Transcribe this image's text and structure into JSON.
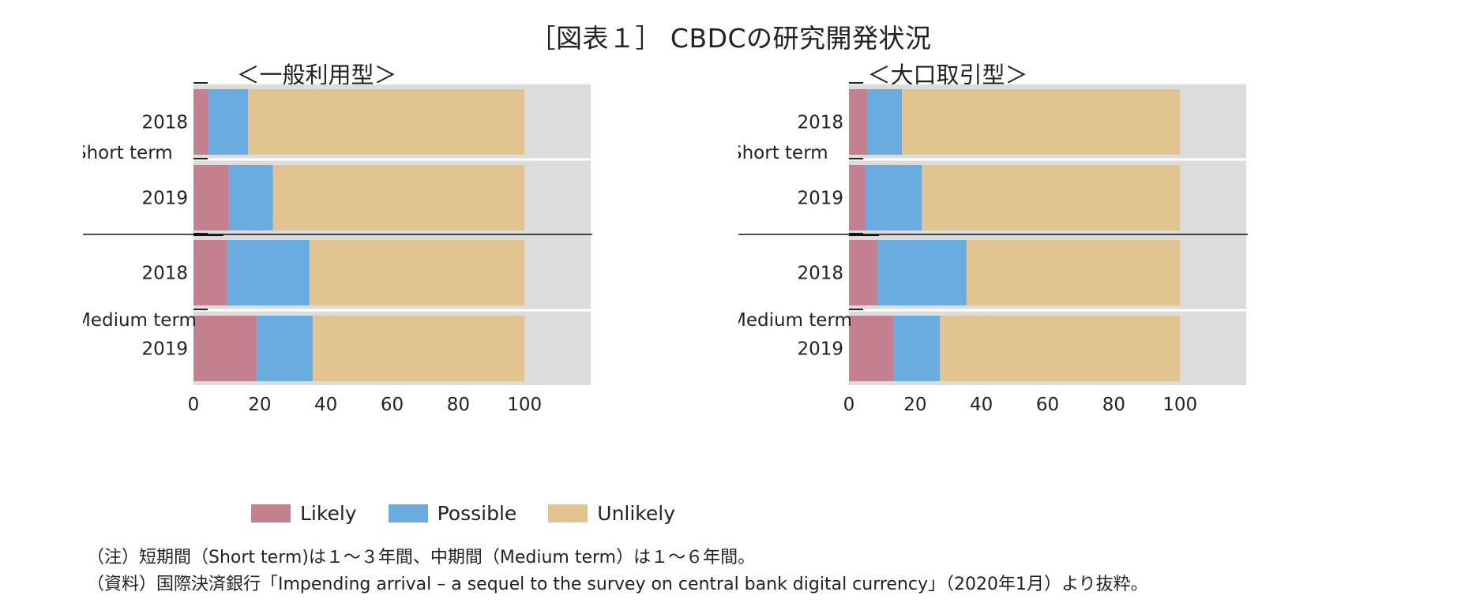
{
  "title": "［図表１］ CBDCの研究開発状況",
  "colors": {
    "likely": "#c4808f",
    "possible": "#6aabe0",
    "unlikely": "#e2c491",
    "plot_bg": "#dcdcdc"
  },
  "legend": [
    "Likely",
    "Possible",
    "Unlikely"
  ],
  "chart_data": [
    {
      "type": "bar",
      "orientation": "horizontal",
      "stacked": true,
      "title": "＜一般利用型＞",
      "groups": [
        "Short term",
        "Medium term"
      ],
      "categories": [
        "2018",
        "2019",
        "2018",
        "2019"
      ],
      "series": [
        {
          "name": "Likely",
          "values": [
            4.5,
            10.5,
            10,
            19
          ]
        },
        {
          "name": "Possible",
          "values": [
            12,
            13.5,
            25,
            17
          ]
        },
        {
          "name": "Unlikely",
          "values": [
            83.5,
            76,
            65,
            64
          ]
        }
      ],
      "xlim": [
        0,
        120
      ],
      "xticks": [
        0,
        20,
        40,
        60,
        80,
        100
      ]
    },
    {
      "type": "bar",
      "orientation": "horizontal",
      "stacked": true,
      "title": "＜大口取引型＞",
      "groups": [
        "Short term",
        "Medium term"
      ],
      "categories": [
        "2018",
        "2019",
        "2018",
        "2019"
      ],
      "series": [
        {
          "name": "Likely",
          "values": [
            5.5,
            5,
            8.5,
            13.5
          ]
        },
        {
          "name": "Possible",
          "values": [
            10.5,
            17,
            27,
            14
          ]
        },
        {
          "name": "Unlikely",
          "values": [
            84,
            78,
            64.5,
            72.5
          ]
        }
      ],
      "xlim": [
        0,
        120
      ],
      "xticks": [
        0,
        20,
        40,
        60,
        80,
        100
      ]
    }
  ],
  "notes": [
    "（注）短期間（Short term)は１～３年間、中期間（Medium term）は１～６年間。",
    "（資料）国際決済銀行「Impending arrival – a sequel to the survey on central bank digital currency」（2020年1月）より抜粋。"
  ]
}
